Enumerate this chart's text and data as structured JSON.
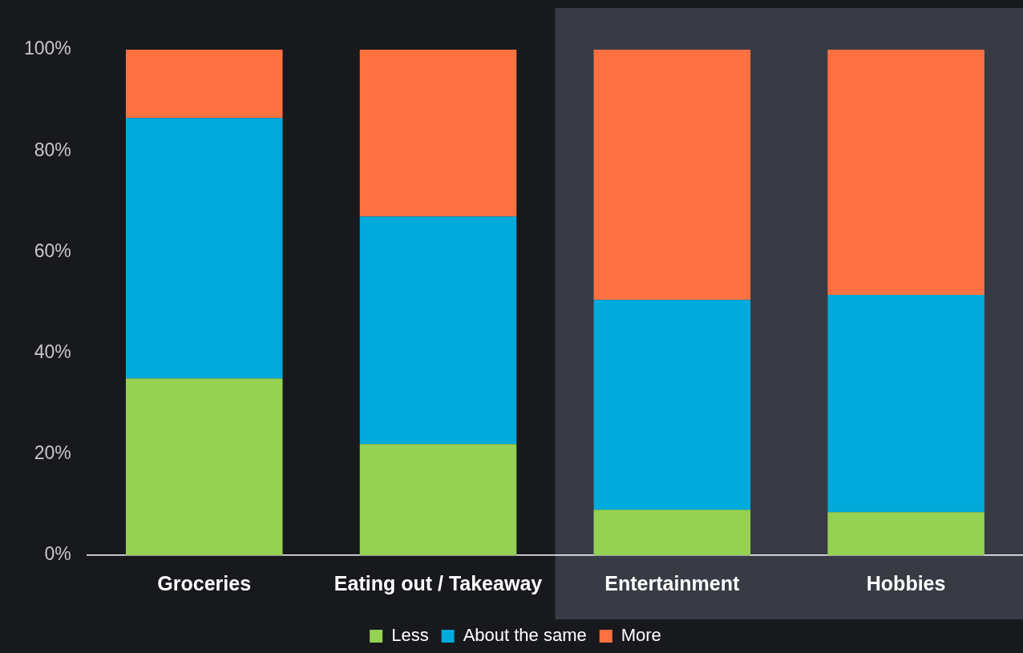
{
  "chart_data": {
    "type": "bar",
    "stacked": true,
    "categories": [
      "Groceries",
      "Eating out / Takeaway",
      "Entertainment",
      "Hobbies"
    ],
    "series": [
      {
        "name": "Less",
        "color": "#95d152",
        "values": [
          35,
          22,
          9,
          8.5
        ]
      },
      {
        "name": "About the same",
        "color": "#00aadb",
        "values": [
          51.5,
          45,
          41.5,
          43
        ]
      },
      {
        "name": "More",
        "color": "#ff7140",
        "values": [
          13.5,
          33,
          49.5,
          48.5
        ]
      }
    ],
    "ylim": [
      0,
      100
    ],
    "yticks": [
      {
        "value": 0,
        "label": "0%"
      },
      {
        "value": 20,
        "label": "20%"
      },
      {
        "value": 40,
        "label": "40%"
      },
      {
        "value": 60,
        "label": "60%"
      },
      {
        "value": 80,
        "label": "80%"
      },
      {
        "value": 100,
        "label": "100%"
      }
    ],
    "grid": false,
    "legend": "bottom",
    "bands": [
      {
        "axis": "x",
        "from": "Entertainment",
        "to": "Hobbies",
        "color": "#383b44"
      }
    ]
  }
}
